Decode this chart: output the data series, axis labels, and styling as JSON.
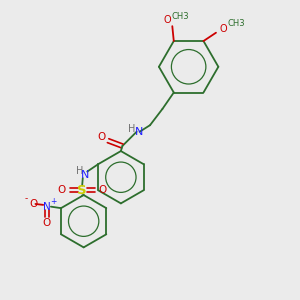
{
  "bg_color": "#ebebeb",
  "bond_color": "#2d6e2d",
  "N_color": "#2020ff",
  "O_color": "#cc0000",
  "S_color": "#cccc00",
  "H_color": "#707070",
  "methoxy_label": "O",
  "methoxy_suffix": "CH3",
  "no2_N": "N",
  "no2_plus": "+",
  "no2_O_minus": "O",
  "no2_minus": "-",
  "so2_S": "S",
  "so2_O_left": "O",
  "so2_O_right": "O",
  "amide_O": "O",
  "nh_H": "H",
  "nh_N": "N"
}
